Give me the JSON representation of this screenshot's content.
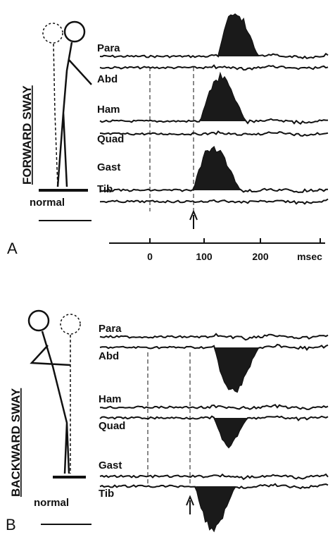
{
  "panels": [
    {
      "label": "A",
      "title": "FORWARD SWAY",
      "stance": "normal",
      "muscles": [
        "Para",
        "Abd",
        "Ham",
        "Quad",
        "Gast",
        "Tib"
      ],
      "axis": {
        "ticks": [
          "0",
          "100",
          "200"
        ],
        "unit": "msec"
      }
    },
    {
      "label": "B",
      "title": "BACKWARD SWAY",
      "stance": "normal",
      "muscles": [
        "Para",
        "Abd",
        "Ham",
        "Quad",
        "Gast",
        "Tib"
      ]
    }
  ]
}
